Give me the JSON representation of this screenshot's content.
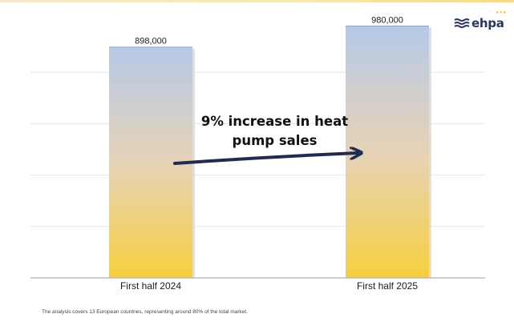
{
  "brand": {
    "logo_text": "ehpa",
    "logo_icon": "waves-icon",
    "colors": {
      "navy": "#2a3566",
      "star_yellow": "#f2b62b"
    }
  },
  "annotation": {
    "text": "9% increase in heat pump sales"
  },
  "footnote": "The analysis covers 13 European countries, representing around 80% of the total market.",
  "colors": {
    "bar_top": "#b7c9e8",
    "bar_bottom": "#f6cf3e",
    "arrow": "#222a52",
    "gridline": "#e6e6e6",
    "axis": "#b3b3b3"
  },
  "chart_data": {
    "type": "bar",
    "categories": [
      "First half 2024",
      "First half 2025"
    ],
    "values": [
      898000,
      980000
    ],
    "value_labels": [
      "898,000",
      "980,000"
    ],
    "title": "",
    "xlabel": "",
    "ylabel": "",
    "ylim": [
      0,
      1000000
    ],
    "grid": true,
    "gridline_step": 200000,
    "show_y_ticks": false
  }
}
